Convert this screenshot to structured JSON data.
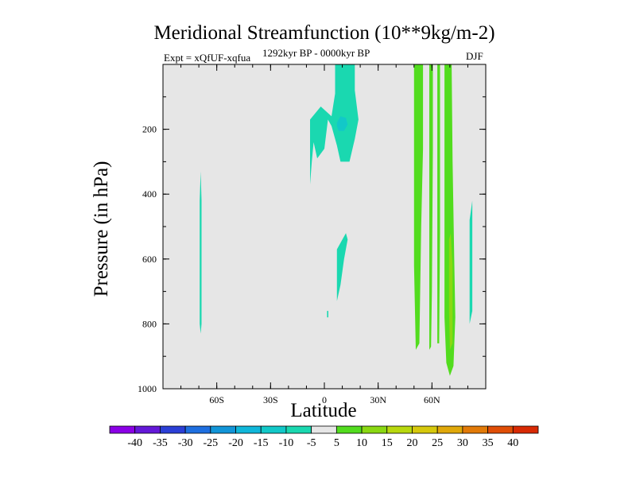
{
  "title": "Meridional Streamfunction (10**9kg/m-2)",
  "subtitle_left": "Expt = xQfUF-xqfua",
  "subtitle_center": "1292kyr BP - 0000kyr BP",
  "subtitle_right": "DJF",
  "chart_data": {
    "type": "heatmap",
    "title": "Meridional Streamfunction (10**9kg/m-2)",
    "xlabel": "Latitude",
    "ylabel": "Pressure (in hPa)",
    "xlim": [
      -90,
      90
    ],
    "ylim": [
      1000,
      0
    ],
    "x_ticks": [
      {
        "value": -60,
        "label": "60S"
      },
      {
        "value": -30,
        "label": "30S"
      },
      {
        "value": 0,
        "label": "0"
      },
      {
        "value": 30,
        "label": "30N"
      },
      {
        "value": 60,
        "label": "60N"
      }
    ],
    "y_ticks": [
      {
        "value": 200,
        "label": "200"
      },
      {
        "value": 400,
        "label": "400"
      },
      {
        "value": 600,
        "label": "600"
      },
      {
        "value": 800,
        "label": "800"
      },
      {
        "value": 1000,
        "label": "1000"
      }
    ],
    "background_range": "-5 to 5",
    "colorbar": {
      "labels": [
        "-40",
        "-35",
        "-30",
        "-25",
        "-20",
        "-15",
        "-10",
        "-5",
        "5",
        "10",
        "15",
        "20",
        "25",
        "30",
        "35",
        "40"
      ],
      "colors": [
        "#8b00e6",
        "#6418d8",
        "#2b3fd6",
        "#1e6fe0",
        "#1295d8",
        "#10b7da",
        "#12c8c8",
        "#1ad8b0",
        "#e6e6e6",
        "#52dc1e",
        "#8ad812",
        "#b8d80e",
        "#d6c80c",
        "#e0a80a",
        "#e27a08",
        "#e04e06",
        "#d82a04"
      ]
    },
    "regions": [
      {
        "name": "sh-highlat-column",
        "range": "-10 to -5",
        "points": [
          [
            -69.5,
            420
          ],
          [
            -69.0,
            330
          ],
          [
            -68.5,
            420
          ],
          [
            -68.5,
            800
          ],
          [
            -69.0,
            830
          ],
          [
            -69.5,
            800
          ]
        ]
      },
      {
        "name": "tropical-upper-cell",
        "range": "-10 to -5",
        "points": [
          [
            6,
            0
          ],
          [
            17,
            0
          ],
          [
            17,
            80
          ],
          [
            19,
            170
          ],
          [
            17,
            230
          ],
          [
            14,
            300
          ],
          [
            9,
            300
          ],
          [
            7,
            250
          ],
          [
            4,
            190
          ],
          [
            2,
            170
          ],
          [
            0,
            260
          ],
          [
            -4,
            290
          ],
          [
            -6,
            240
          ],
          [
            -7,
            300
          ],
          [
            -8,
            370
          ],
          [
            -8,
            170
          ],
          [
            -2,
            130
          ],
          [
            4,
            160
          ],
          [
            6,
            90
          ]
        ]
      },
      {
        "name": "tropical-core",
        "range": "-15 to -10",
        "points": [
          [
            7,
            180
          ],
          [
            9,
            160
          ],
          [
            12,
            165
          ],
          [
            13,
            185
          ],
          [
            11,
            205
          ],
          [
            8,
            205
          ],
          [
            7,
            190
          ]
        ]
      },
      {
        "name": "tropical-lower-band",
        "range": "-10 to -5",
        "points": [
          [
            7,
            570
          ],
          [
            12,
            520
          ],
          [
            13,
            540
          ],
          [
            11,
            600
          ],
          [
            9,
            680
          ],
          [
            7,
            730
          ]
        ]
      },
      {
        "name": "equator-speck",
        "range": "-10 to -5",
        "points": [
          [
            1.5,
            760
          ],
          [
            2.2,
            760
          ],
          [
            2.2,
            780
          ],
          [
            1.5,
            780
          ]
        ]
      },
      {
        "name": "nh-positive-column-a",
        "range": "5 to 10",
        "points": [
          [
            50,
            0
          ],
          [
            55,
            0
          ],
          [
            55,
            260
          ],
          [
            54,
            500
          ],
          [
            53,
            860
          ],
          [
            51,
            880
          ],
          [
            50,
            620
          ]
        ]
      },
      {
        "name": "nh-positive-column-b",
        "range": "5 to 10",
        "points": [
          [
            58.5,
            0
          ],
          [
            60.5,
            0
          ],
          [
            60.5,
            260
          ],
          [
            60,
            700
          ],
          [
            59.5,
            870
          ],
          [
            58.5,
            880
          ],
          [
            58.5,
            500
          ]
        ]
      },
      {
        "name": "nh-positive-column-c",
        "range": "5 to 10",
        "points": [
          [
            63,
            0
          ],
          [
            64.5,
            0
          ],
          [
            64.5,
            520
          ],
          [
            64,
            860
          ],
          [
            63,
            860
          ],
          [
            63,
            400
          ]
        ]
      },
      {
        "name": "nh-positive-column-d",
        "range": "5 to 10",
        "points": [
          [
            67,
            0
          ],
          [
            71,
            0
          ],
          [
            71.5,
            300
          ],
          [
            72.5,
            620
          ],
          [
            73,
            780
          ],
          [
            72,
            930
          ],
          [
            70,
            960
          ],
          [
            68,
            920
          ],
          [
            67,
            780
          ],
          [
            67,
            500
          ]
        ]
      },
      {
        "name": "nh-positive-core",
        "range": "10 to 15",
        "points": [
          [
            69.5,
            540
          ],
          [
            70.5,
            520
          ],
          [
            71.5,
            620
          ],
          [
            71.5,
            860
          ],
          [
            70,
            880
          ],
          [
            69.5,
            760
          ]
        ]
      },
      {
        "name": "nh-highlat-negative",
        "range": "-10 to -5",
        "points": [
          [
            81,
            480
          ],
          [
            82.5,
            420
          ],
          [
            82.5,
            760
          ],
          [
            81,
            800
          ]
        ]
      }
    ]
  }
}
